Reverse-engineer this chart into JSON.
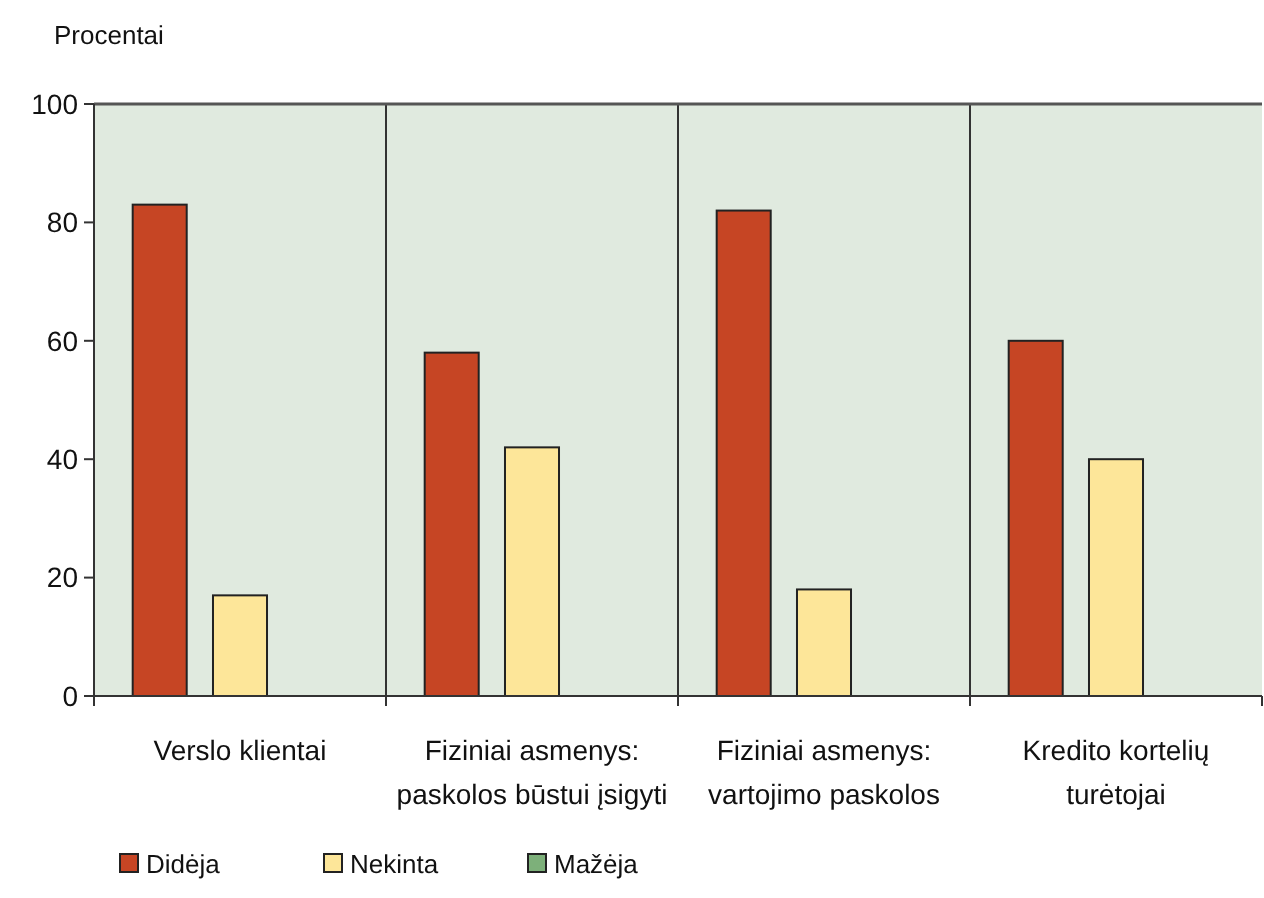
{
  "chart_data": {
    "type": "bar",
    "ylabel": "Procentai",
    "categories": [
      "Verslo klientai",
      "Fiziniai asmenys: paskolos būstui įsigyti",
      "Fiziniai asmenys: vartojimo paskolos",
      "Kredito kortelių turėtojai"
    ],
    "series": [
      {
        "name": "Didėja",
        "color": "#c64524",
        "values": [
          83,
          58,
          82,
          60
        ]
      },
      {
        "name": "Nekinta",
        "color": "#fde699",
        "values": [
          17,
          42,
          18,
          40
        ]
      },
      {
        "name": "Mažėja",
        "color": "#7db07a",
        "values": [
          0,
          0,
          0,
          0
        ]
      }
    ],
    "ylim": [
      0,
      100
    ],
    "yticks": [
      0,
      20,
      40,
      60,
      80,
      100
    ],
    "grid": "x",
    "legend": "bottom"
  }
}
